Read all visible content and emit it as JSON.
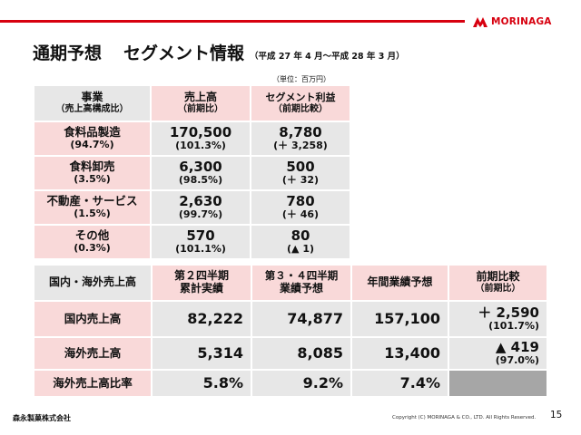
{
  "header": {
    "logo_text": "MORINAGA",
    "brand_color": "#d7000f"
  },
  "title": {
    "main": "通期予想",
    "sub": "セグメント情報",
    "period": "（平成 27 年 4 月～平成 28 年 3 月）"
  },
  "unit": "（単位：百万円）",
  "segment_table": {
    "headers": {
      "business": [
        "事業",
        "（売上高構成比）"
      ],
      "sales": [
        "売上高",
        "（前期比）"
      ],
      "profit": [
        "セグメント利益",
        "（前期比較）"
      ]
    },
    "rows": [
      {
        "name": "食料品製造",
        "share": "(94.7%)",
        "sales": "170,500",
        "sales_yoy": "(101.3%)",
        "profit": "8,780",
        "profit_diff": "(＋ 3,258)"
      },
      {
        "name": "食料卸売",
        "share": "(3.5%)",
        "sales": "6,300",
        "sales_yoy": "(98.5%)",
        "profit": "500",
        "profit_diff": "(＋ 32)"
      },
      {
        "name": "不動産・サービス",
        "share": "(1.5%)",
        "sales": "2,630",
        "sales_yoy": "(99.7%)",
        "profit": "780",
        "profit_diff": "(＋ 46)"
      },
      {
        "name": "その他",
        "share": "(0.3%)",
        "sales": "570",
        "sales_yoy": "(101.1%)",
        "profit": "80",
        "profit_diff": "(▲ 1)"
      }
    ]
  },
  "region_table": {
    "headers": {
      "label": "国内・海外売上高",
      "h1": [
        "第２四半期",
        "累計実績"
      ],
      "h2": [
        "第３・４四半期",
        "業績予想"
      ],
      "h3": "年間業績予想",
      "h4": [
        "前期比較",
        "（前期比）"
      ]
    },
    "rows": [
      {
        "label": "国内売上高",
        "v1": "82,222",
        "v2": "74,877",
        "v3": "157,100",
        "v4": "＋ 2,590",
        "v4_sub": "(101.7%)"
      },
      {
        "label": "海外売上高",
        "v1": "5,314",
        "v2": "8,085",
        "v3": "13,400",
        "v4": "▲ 419",
        "v4_sub": "(97.0%)"
      },
      {
        "label": "海外売上高比率",
        "v1": "5.8%",
        "v2": "9.2%",
        "v3": "7.4%",
        "v4": "",
        "v4_sub": ""
      }
    ]
  },
  "footer": {
    "company": "森永製菓株式会社",
    "copyright": "Copyright (C) MORINAGA & CO., LTD. All Rights Reserved.",
    "page_number": "15"
  }
}
